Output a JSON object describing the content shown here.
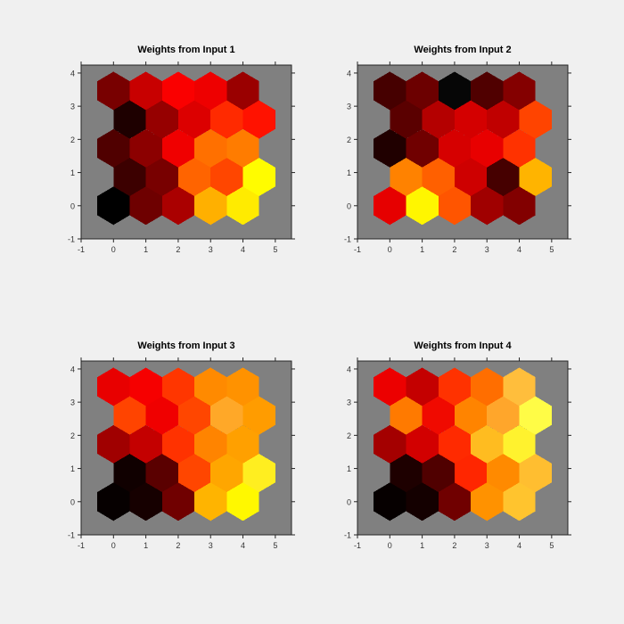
{
  "figure": {
    "background": "#F0F0F0",
    "axes_background": "#808080",
    "axes_edge_color": "#262626",
    "tick_label_color": "#333333",
    "title_color": "#000000",
    "colormap": "hot"
  },
  "chart_data": [
    {
      "type": "heatmap",
      "layout": "hexagonal-som-grid",
      "grid": "5x5",
      "title": "Weights from Input 1",
      "x_ticks": [
        "-1",
        "0",
        "1",
        "2",
        "3",
        "4",
        "5"
      ],
      "y_ticks": [
        "-1",
        "0",
        "1",
        "2",
        "3",
        "4"
      ],
      "xlim": [
        -1,
        5.5
      ],
      "ylim": [
        -1,
        4.24
      ],
      "legend": "none",
      "cell_colors_rows_bottom_to_top": [
        [
          "#000000",
          "#6E0000",
          "#AA0000",
          "#FFB000",
          "#FFEB00"
        ],
        [
          "#3C0000",
          "#780000",
          "#FF6400",
          "#FF4600",
          "#FFFC00"
        ],
        [
          "#500000",
          "#8C0000",
          "#F00000",
          "#FF7000",
          "#FF7C00"
        ],
        [
          "#1E0000",
          "#960000",
          "#DC0000",
          "#FF2A00",
          "#FF1200"
        ],
        [
          "#780000",
          "#C80000",
          "#FA0000",
          "#EE0000",
          "#9A0000"
        ]
      ]
    },
    {
      "type": "heatmap",
      "layout": "hexagonal-som-grid",
      "grid": "5x5",
      "title": "Weights from Input 2",
      "x_ticks": [
        "-1",
        "0",
        "1",
        "2",
        "3",
        "4",
        "5"
      ],
      "y_ticks": [
        "-1",
        "0",
        "1",
        "2",
        "3",
        "4"
      ],
      "xlim": [
        -1,
        5.5
      ],
      "ylim": [
        -1,
        4.24
      ],
      "legend": "none",
      "cell_colors_rows_bottom_to_top": [
        [
          "#E60000",
          "#FFF600",
          "#FF5500",
          "#A00000",
          "#820000"
        ],
        [
          "#FF8200",
          "#FF6000",
          "#CE0000",
          "#460000",
          "#FFB400"
        ],
        [
          "#200000",
          "#700000",
          "#D60000",
          "#E80000",
          "#FF3200"
        ],
        [
          "#5A0000",
          "#B40000",
          "#D40000",
          "#C00000",
          "#FF4400"
        ],
        [
          "#460000",
          "#6C0000",
          "#060606",
          "#500000",
          "#840000"
        ]
      ]
    },
    {
      "type": "heatmap",
      "layout": "hexagonal-som-grid",
      "grid": "5x5",
      "title": "Weights from Input 3",
      "x_ticks": [
        "-1",
        "0",
        "1",
        "2",
        "3",
        "4",
        "5"
      ],
      "y_ticks": [
        "-1",
        "0",
        "1",
        "2",
        "3",
        "4"
      ],
      "xlim": [
        -1,
        5.5
      ],
      "ylim": [
        -1,
        4.24
      ],
      "legend": "none",
      "cell_colors_rows_bottom_to_top": [
        [
          "#060000",
          "#160000",
          "#700000",
          "#FFB400",
          "#FFF800"
        ],
        [
          "#100000",
          "#5A0000",
          "#FF4600",
          "#FFA600",
          "#FFEE20"
        ],
        [
          "#A00000",
          "#C40000",
          "#FF3200",
          "#FF8400",
          "#FFA000"
        ],
        [
          "#FF4400",
          "#F00000",
          "#FF4600",
          "#FFA828",
          "#FF9C00"
        ],
        [
          "#E80000",
          "#F60000",
          "#FF3600",
          "#FF8A00",
          "#FF9200"
        ]
      ]
    },
    {
      "type": "heatmap",
      "layout": "hexagonal-som-grid",
      "grid": "5x5",
      "title": "Weights from Input 4",
      "x_ticks": [
        "-1",
        "0",
        "1",
        "2",
        "3",
        "4",
        "5"
      ],
      "y_ticks": [
        "-1",
        "0",
        "1",
        "2",
        "3",
        "4"
      ],
      "xlim": [
        -1,
        5.5
      ],
      "ylim": [
        -1,
        4.24
      ],
      "legend": "none",
      "cell_colors_rows_bottom_to_top": [
        [
          "#060000",
          "#140000",
          "#700000",
          "#FF9200",
          "#FFC42E"
        ],
        [
          "#1E0000",
          "#500000",
          "#FF2600",
          "#FF8A00",
          "#FFBE30"
        ],
        [
          "#A40000",
          "#D20000",
          "#FF2A00",
          "#FFBC20",
          "#FFF22E"
        ],
        [
          "#FF7A00",
          "#F00A00",
          "#FF8400",
          "#FFA62B",
          "#FFFC46"
        ],
        [
          "#EC0000",
          "#C40000",
          "#FF3200",
          "#FF6E00",
          "#FFBE3C"
        ]
      ]
    }
  ]
}
